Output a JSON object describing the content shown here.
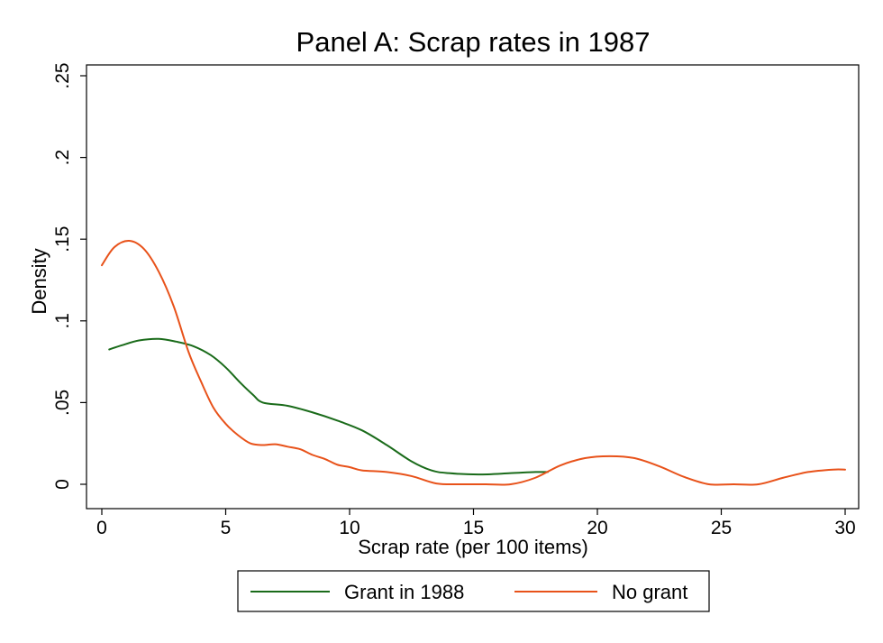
{
  "chart_data": {
    "type": "line",
    "title": "Panel A: Scrap rates in 1987",
    "xlabel": "Scrap rate (per 100 items)",
    "ylabel": "Density",
    "xlim": [
      0,
      30
    ],
    "ylim": [
      0,
      0.25
    ],
    "xticks": [
      0,
      5,
      10,
      15,
      20,
      25,
      30
    ],
    "xtick_labels": [
      "0",
      "5",
      "10",
      "15",
      "20",
      "25",
      "30"
    ],
    "yticks": [
      0,
      0.05,
      0.1,
      0.15,
      0.2,
      0.25
    ],
    "ytick_labels": [
      "0",
      ".05",
      ".1",
      ".15",
      ".2",
      ".25"
    ],
    "grid": false,
    "legend_position": "bottom",
    "series": [
      {
        "name": "Grant in 1988",
        "color": "#1a6b1a",
        "x": [
          0.3,
          0.8,
          1.5,
          2.3,
          3.0,
          3.7,
          4.4,
          5.0,
          5.6,
          6.1,
          6.5,
          7.5,
          8.5,
          9.5,
          10.5,
          11.5,
          12.5,
          13.3,
          14.0,
          15.2,
          16.5,
          17.5,
          18.0
        ],
        "y": [
          0.0825,
          0.085,
          0.088,
          0.089,
          0.0873,
          0.0845,
          0.079,
          0.0715,
          0.062,
          0.0548,
          0.05,
          0.048,
          0.044,
          0.039,
          0.033,
          0.024,
          0.014,
          0.0085,
          0.0068,
          0.006,
          0.0068,
          0.0075,
          0.0075
        ]
      },
      {
        "name": "No grant",
        "color": "#e8521a",
        "x": [
          0.0,
          0.5,
          1.1,
          1.7,
          2.3,
          2.9,
          3.5,
          4.0,
          4.5,
          5.0,
          5.5,
          6.0,
          6.5,
          7.0,
          7.5,
          8.0,
          8.5,
          9.0,
          9.5,
          10.0,
          10.5,
          11.5,
          12.5,
          13.5,
          14.5,
          15.5,
          16.5,
          17.5,
          18.5,
          19.5,
          20.5,
          21.5,
          22.5,
          23.5,
          24.5,
          25.5,
          26.5,
          27.5,
          28.5,
          29.5,
          30.0
        ],
        "y": [
          0.134,
          0.145,
          0.149,
          0.144,
          0.13,
          0.109,
          0.081,
          0.063,
          0.047,
          0.037,
          0.03,
          0.025,
          0.024,
          0.0245,
          0.023,
          0.0215,
          0.018,
          0.0155,
          0.012,
          0.0105,
          0.0085,
          0.0075,
          0.005,
          0.0005,
          0.0,
          0.0,
          0.0,
          0.004,
          0.0115,
          0.016,
          0.0172,
          0.016,
          0.011,
          0.0045,
          0.0,
          0.0,
          0.0,
          0.004,
          0.0075,
          0.009,
          0.009
        ]
      }
    ]
  }
}
